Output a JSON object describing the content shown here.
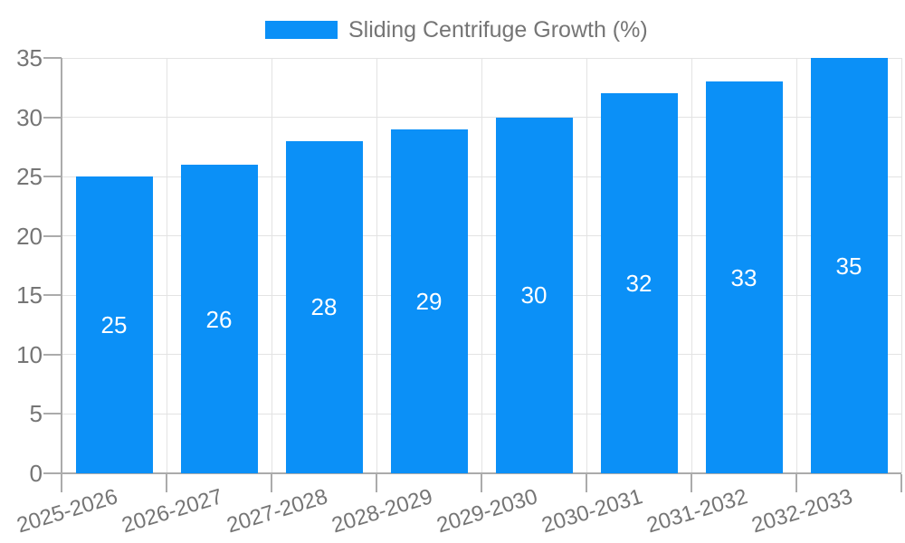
{
  "legend": {
    "label": "Sliding Centrifuge Growth (%)"
  },
  "colors": {
    "bar": "#0b90f7",
    "axis": "#ababab",
    "grid": "#e3e3e3",
    "tick_text": "#757575",
    "bar_label_text": "#ffffff",
    "background": "#ffffff"
  },
  "chart_data": {
    "type": "bar",
    "title": "",
    "legend": "Sliding Centrifuge Growth (%)",
    "legend_position": "top-center",
    "categories": [
      "2025-2026",
      "2026-2027",
      "2027-2028",
      "2028-2029",
      "2029-2030",
      "2030-2031",
      "2031-2032",
      "2032-2033"
    ],
    "values": [
      25,
      26,
      28,
      29,
      30,
      32,
      33,
      35
    ],
    "bar_value_labels": [
      "25",
      "26",
      "28",
      "29",
      "30",
      "32",
      "33",
      "35"
    ],
    "xlabel": "",
    "ylabel": "",
    "ylim": [
      0,
      35
    ],
    "yticks": [
      0,
      5,
      10,
      15,
      20,
      25,
      30,
      35
    ],
    "grid": "horizontal and vertical light gray gridlines",
    "x_tick_rotation_deg": -17,
    "value_label_position": "inside-center"
  }
}
